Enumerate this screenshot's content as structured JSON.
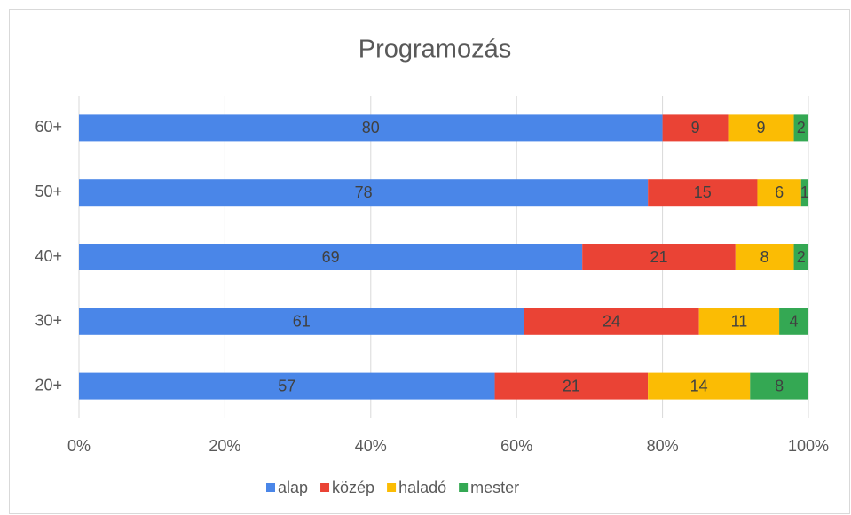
{
  "chart_data": {
    "type": "stacked_bar_horizontal",
    "title": "Programozás",
    "categories": [
      "60+",
      "50+",
      "40+",
      "30+",
      "20+"
    ],
    "series": [
      {
        "name": "alap",
        "color": "#4a86e8",
        "values": [
          80,
          78,
          69,
          61,
          57
        ]
      },
      {
        "name": "közép",
        "color": "#ea4335",
        "values": [
          9,
          15,
          21,
          24,
          21
        ]
      },
      {
        "name": "haladó",
        "color": "#fbbc04",
        "values": [
          9,
          6,
          8,
          11,
          14
        ]
      },
      {
        "name": "mester",
        "color": "#34a853",
        "values": [
          2,
          1,
          2,
          4,
          8
        ]
      }
    ],
    "xlim": [
      0,
      100
    ],
    "xticks": [
      {
        "value": 0,
        "label": "0%"
      },
      {
        "value": 20,
        "label": "20%"
      },
      {
        "value": 40,
        "label": "40%"
      },
      {
        "value": 60,
        "label": "60%"
      },
      {
        "value": 80,
        "label": "80%"
      },
      {
        "value": 100,
        "label": "100%"
      }
    ],
    "grid": true,
    "legend": "bottom"
  }
}
